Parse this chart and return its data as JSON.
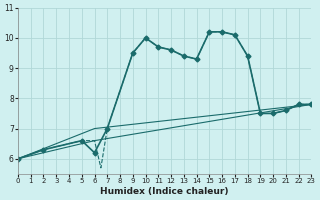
{
  "xlabel": "Humidex (Indice chaleur)",
  "ylabel": "",
  "background_color": "#d0f0f0",
  "grid_color": "#b0d8d8",
  "line_color": "#1a6b6b",
  "xlim": [
    0,
    23
  ],
  "ylim": [
    5.5,
    11
  ],
  "yticks": [
    6,
    7,
    8,
    9,
    10,
    11
  ],
  "xticks": [
    0,
    1,
    2,
    3,
    4,
    5,
    6,
    7,
    8,
    9,
    10,
    11,
    12,
    13,
    14,
    15,
    16,
    17,
    18,
    19,
    20,
    21,
    22,
    23
  ],
  "series": [
    {
      "x": [
        0,
        2,
        5,
        6,
        7,
        9,
        10,
        11,
        12,
        13,
        14,
        15,
        16,
        17,
        18,
        19,
        20,
        21,
        22,
        23
      ],
      "y": [
        6.0,
        6.3,
        6.6,
        6.2,
        7.0,
        9.5,
        10.0,
        9.7,
        9.6,
        9.4,
        9.3,
        10.2,
        10.2,
        10.1,
        9.4,
        7.5,
        7.5,
        7.6,
        7.8,
        7.8
      ],
      "style": "-",
      "marker": "D",
      "markersize": 2.5,
      "linewidth": 1.2
    },
    {
      "x": [
        0,
        2,
        5,
        6,
        6.5,
        7,
        9,
        10,
        11,
        12,
        13,
        14,
        15,
        16,
        17,
        18,
        19,
        20,
        21,
        22,
        23
      ],
      "y": [
        6.0,
        6.3,
        6.6,
        6.6,
        5.7,
        7.0,
        9.5,
        10.0,
        9.7,
        9.6,
        9.4,
        9.3,
        10.2,
        10.2,
        10.1,
        9.4,
        7.5,
        7.5,
        7.6,
        7.8,
        7.8
      ],
      "style": "--",
      "marker": null,
      "markersize": 0,
      "linewidth": 0.8
    },
    {
      "x": [
        0,
        6,
        23
      ],
      "y": [
        6.0,
        6.6,
        7.8
      ],
      "style": "-",
      "marker": null,
      "markersize": 0,
      "linewidth": 0.8
    },
    {
      "x": [
        0,
        6,
        23
      ],
      "y": [
        6.0,
        7.0,
        7.8
      ],
      "style": "-",
      "marker": null,
      "markersize": 0,
      "linewidth": 0.8
    }
  ]
}
